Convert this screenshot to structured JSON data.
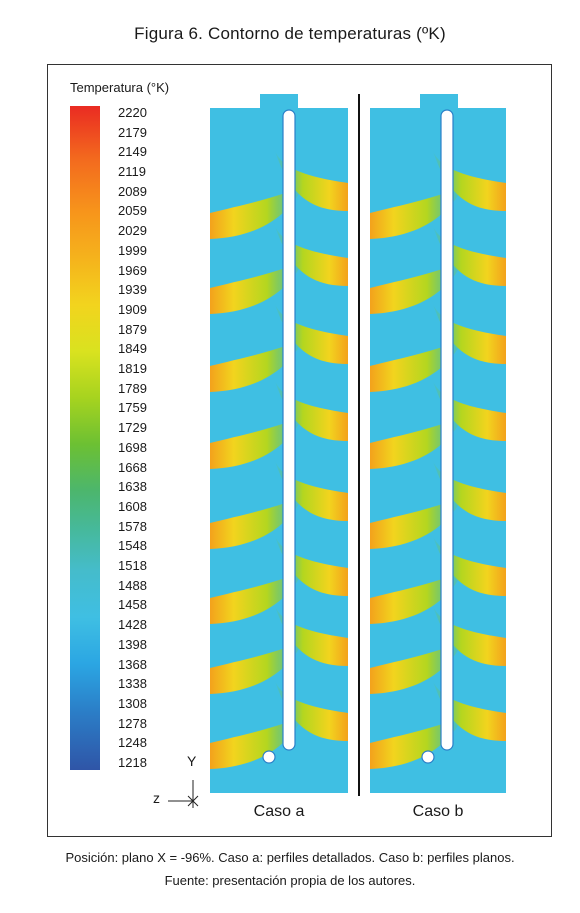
{
  "figure": {
    "title": "Figura 6. Contorno de temperaturas (ºK)",
    "caption": "Posición: plano X = -96%. Caso a: perfiles detallados. Caso b: perfiles planos.",
    "source": "Fuente: presentación propia de los autores."
  },
  "legend": {
    "title": "Temperatura (°K)",
    "ticks": [
      "2220",
      "2179",
      "2149",
      "2119",
      "2089",
      "2059",
      "2029",
      "1999",
      "1969",
      "1939",
      "1909",
      "1879",
      "1849",
      "1819",
      "1789",
      "1759",
      "1729",
      "1698",
      "1668",
      "1638",
      "1608",
      "1578",
      "1548",
      "1518",
      "1488",
      "1458",
      "1428",
      "1398",
      "1368",
      "1338",
      "1308",
      "1278",
      "1248",
      "1218"
    ]
  },
  "axes": {
    "y_label": "Y",
    "z_label": "z"
  },
  "cases": [
    {
      "label": "Caso a"
    },
    {
      "label": "Caso b"
    }
  ],
  "colors": {
    "background_field": "#3fbfe3",
    "hot": "#f5c41c",
    "warm": "#a6d31f"
  }
}
